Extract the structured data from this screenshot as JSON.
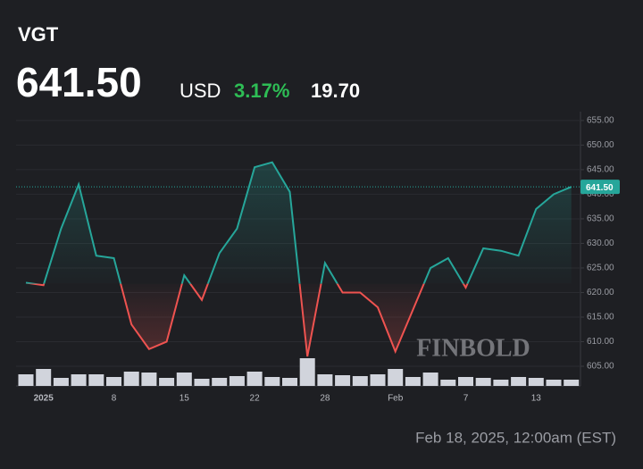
{
  "header": {
    "symbol": "VGT",
    "price": "641.50",
    "currency": "USD",
    "change_pct": "3.17%",
    "change": "19.70"
  },
  "footer": {
    "timestamp": "Feb 18, 2025, 12:00am (EST)"
  },
  "watermark": "FINBOLD",
  "chart_data": {
    "type": "line",
    "categories": [
      null,
      "2025",
      null,
      null,
      null,
      "8",
      null,
      null,
      null,
      "15",
      null,
      null,
      null,
      "22",
      null,
      null,
      null,
      "28",
      null,
      null,
      null,
      "Feb",
      null,
      null,
      null,
      "7",
      null,
      null,
      null,
      "13",
      null,
      null
    ],
    "series": [
      {
        "name": "VGT",
        "up_color": "#26a69a",
        "down_color": "#ef5350",
        "values": [
          622,
          621.5,
          633,
          642,
          627.5,
          627,
          613.5,
          608.5,
          610,
          623.5,
          618.5,
          628,
          633,
          645.5,
          646.5,
          640.5,
          607,
          626,
          620,
          620,
          617,
          608,
          616.5,
          625,
          627,
          621,
          629,
          628.5,
          627.5,
          637,
          640,
          641.5
        ]
      }
    ],
    "volume": {
      "color": "#d1d4dc",
      "values": [
        13,
        19,
        9,
        13,
        13,
        10,
        16,
        15,
        9,
        15,
        8,
        9,
        11,
        16,
        10,
        9,
        31,
        13,
        12,
        11,
        13,
        19,
        10,
        15,
        7,
        10,
        9,
        7,
        10,
        9,
        7,
        7
      ]
    },
    "ylim": [
      601,
      656.8
    ],
    "yticks": [
      {
        "value": 605,
        "label": "605.00"
      },
      {
        "value": 610,
        "label": "610.00"
      },
      {
        "value": 615,
        "label": "615.00"
      },
      {
        "value": 620,
        "label": "620.00"
      },
      {
        "value": 625,
        "label": "625.00"
      },
      {
        "value": 630,
        "label": "630.00"
      },
      {
        "value": 635,
        "label": "635.00"
      },
      {
        "value": 640,
        "label": "640.00"
      },
      {
        "value": 645,
        "label": "645.00"
      },
      {
        "value": 650,
        "label": "650.00"
      },
      {
        "value": 655,
        "label": "655.00"
      }
    ],
    "grid": true
  }
}
